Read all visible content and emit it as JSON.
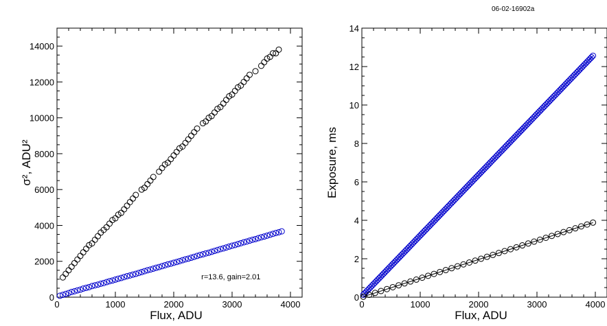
{
  "figure_id": "06-02-16902a",
  "colors": {
    "black_series": "#000000",
    "blue_series": "#0000cc",
    "axes": "#000000"
  },
  "chart_data": [
    {
      "type": "scatter",
      "title": "",
      "xlabel": "Flux, ADU",
      "ylabel": "σ², ADU²",
      "xlim": [
        0,
        4200
      ],
      "ylim": [
        0,
        15000
      ],
      "xticks": [
        0,
        1000,
        2000,
        3000,
        4000
      ],
      "yticks": [
        0,
        2000,
        4000,
        6000,
        8000,
        10000,
        12000,
        14000
      ],
      "grid": false,
      "annotation": "r=13.6, gain=2.01",
      "series": [
        {
          "color": "#000000",
          "marker": "circle",
          "x": [
            100,
            150,
            200,
            250,
            300,
            350,
            400,
            450,
            500,
            550,
            600,
            650,
            700,
            750,
            800,
            850,
            900,
            950,
            1000,
            1050,
            1100,
            1150,
            1200,
            1250,
            1300,
            1350,
            1450,
            1500,
            1550,
            1600,
            1650,
            1750,
            1800,
            1850,
            1900,
            1950,
            2000,
            2050,
            2100,
            2150,
            2200,
            2250,
            2300,
            2350,
            2400,
            2500,
            2550,
            2600,
            2650,
            2700,
            2750,
            2800,
            2850,
            2900,
            2950,
            3000,
            3050,
            3100,
            3150,
            3200,
            3250,
            3300,
            3400,
            3500,
            3550,
            3600,
            3650,
            3700,
            3750,
            3800
          ],
          "y": [
            1100,
            1300,
            1500,
            1700,
            1900,
            2100,
            2300,
            2500,
            2700,
            2900,
            3000,
            3200,
            3400,
            3600,
            3750,
            3900,
            4100,
            4300,
            4400,
            4600,
            4700,
            4900,
            5100,
            5300,
            5500,
            5700,
            6000,
            6100,
            6300,
            6500,
            6700,
            7000,
            7200,
            7400,
            7500,
            7700,
            7900,
            8100,
            8300,
            8400,
            8600,
            8800,
            9000,
            9200,
            9400,
            9700,
            9800,
            10000,
            10100,
            10300,
            10500,
            10600,
            10800,
            11000,
            11200,
            11300,
            11500,
            11700,
            11800,
            12000,
            12200,
            12400,
            12600,
            12900,
            13100,
            13300,
            13400,
            13600,
            13600,
            13800
          ]
        },
        {
          "color": "#0000cc",
          "marker": "circle",
          "x": [
            50,
            100,
            150,
            200,
            250,
            300,
            350,
            400,
            450,
            500,
            550,
            600,
            650,
            700,
            750,
            800,
            850,
            900,
            950,
            1000,
            1050,
            1100,
            1150,
            1200,
            1250,
            1300,
            1350,
            1400,
            1450,
            1500,
            1550,
            1600,
            1650,
            1700,
            1750,
            1800,
            1850,
            1900,
            1950,
            2000,
            2050,
            2100,
            2150,
            2200,
            2250,
            2300,
            2350,
            2400,
            2450,
            2500,
            2550,
            2600,
            2650,
            2700,
            2750,
            2800,
            2850,
            2900,
            2950,
            3000,
            3050,
            3100,
            3150,
            3200,
            3250,
            3300,
            3350,
            3400,
            3450,
            3500,
            3550,
            3600,
            3650,
            3700,
            3750,
            3800,
            3850
          ],
          "y": [
            80,
            130,
            180,
            230,
            290,
            330,
            380,
            420,
            480,
            520,
            560,
            620,
            660,
            700,
            750,
            790,
            840,
            890,
            930,
            980,
            1030,
            1070,
            1120,
            1170,
            1210,
            1260,
            1300,
            1350,
            1400,
            1450,
            1500,
            1540,
            1590,
            1640,
            1680,
            1730,
            1780,
            1830,
            1870,
            1920,
            1960,
            2010,
            2060,
            2110,
            2150,
            2200,
            2250,
            2300,
            2350,
            2390,
            2440,
            2480,
            2530,
            2580,
            2630,
            2680,
            2720,
            2770,
            2820,
            2870,
            2910,
            2960,
            3010,
            3060,
            3100,
            3150,
            3200,
            3240,
            3290,
            3340,
            3380,
            3430,
            3480,
            3530,
            3580,
            3620,
            3670
          ]
        }
      ]
    },
    {
      "type": "scatter",
      "title": "",
      "xlabel": "Flux, ADU",
      "ylabel": "Exposure, ms",
      "xlim": [
        0,
        4200
      ],
      "ylim": [
        0,
        14
      ],
      "xticks": [
        0,
        1000,
        2000,
        3000,
        4000
      ],
      "yticks": [
        0,
        2,
        4,
        6,
        8,
        10,
        12,
        14
      ],
      "grid": false,
      "series": [
        {
          "color": "#0000cc",
          "marker": "circle",
          "fit_line": true,
          "x_range": [
            25,
            3960
          ],
          "slope": 0.00316,
          "intercept": 0.05,
          "n_points": 160
        },
        {
          "color": "#000000",
          "marker": "circle",
          "fit_line": true,
          "x_range": [
            25,
            3960
          ],
          "slope": 0.00098,
          "intercept": 0.0,
          "n_points": 40
        }
      ]
    }
  ]
}
